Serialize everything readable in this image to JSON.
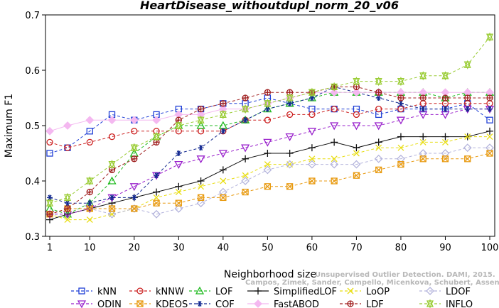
{
  "chart_data": {
    "type": "line",
    "title": "HeartDisease_withoutdupl_norm_20_v06",
    "xlabel": "Neighborhood size",
    "ylabel": "Maximum F1",
    "xlim": [
      1,
      100
    ],
    "ylim": [
      0.3,
      0.7
    ],
    "xticks": [
      1,
      10,
      20,
      30,
      40,
      50,
      60,
      70,
      80,
      90,
      100
    ],
    "yticks": [
      0.3,
      0.4,
      0.5,
      0.6,
      0.7
    ],
    "grid": false,
    "legend_position": "bottom",
    "watermark": [
      "Unsupervised Outlier Detection. DAMI, 2015.",
      "Campos, Zimek, Sander, Campello, Micenkova, Schubert, Assent, Houle"
    ],
    "series": [
      {
        "name": "kNN",
        "color": "#1f3fd6",
        "marker": "square",
        "line": "dash",
        "points": [
          [
            1,
            0.45
          ],
          [
            5,
            0.46
          ],
          [
            10,
            0.49
          ],
          [
            15,
            0.52
          ],
          [
            20,
            0.51
          ],
          [
            25,
            0.52
          ],
          [
            30,
            0.53
          ],
          [
            35,
            0.53
          ],
          [
            40,
            0.54
          ],
          [
            45,
            0.54
          ],
          [
            50,
            0.55
          ],
          [
            55,
            0.54
          ],
          [
            60,
            0.53
          ],
          [
            65,
            0.53
          ],
          [
            70,
            0.53
          ],
          [
            75,
            0.52
          ],
          [
            80,
            0.53
          ],
          [
            85,
            0.53
          ],
          [
            90,
            0.53
          ],
          [
            95,
            0.54
          ],
          [
            100,
            0.51
          ]
        ]
      },
      {
        "name": "kNNW",
        "color": "#cc2222",
        "marker": "circle",
        "line": "dash",
        "points": [
          [
            1,
            0.47
          ],
          [
            5,
            0.46
          ],
          [
            10,
            0.47
          ],
          [
            15,
            0.48
          ],
          [
            20,
            0.49
          ],
          [
            25,
            0.49
          ],
          [
            30,
            0.49
          ],
          [
            35,
            0.49
          ],
          [
            40,
            0.49
          ],
          [
            45,
            0.51
          ],
          [
            50,
            0.51
          ],
          [
            55,
            0.52
          ],
          [
            60,
            0.52
          ],
          [
            65,
            0.53
          ],
          [
            70,
            0.52
          ],
          [
            75,
            0.53
          ],
          [
            80,
            0.53
          ],
          [
            85,
            0.54
          ],
          [
            90,
            0.54
          ],
          [
            95,
            0.54
          ],
          [
            100,
            0.54
          ]
        ]
      },
      {
        "name": "LOF",
        "color": "#22bb22",
        "marker": "triangle-up",
        "line": "dash",
        "points": [
          [
            1,
            0.35
          ],
          [
            5,
            0.34
          ],
          [
            10,
            0.36
          ],
          [
            15,
            0.4
          ],
          [
            20,
            0.45
          ],
          [
            25,
            0.48
          ],
          [
            30,
            0.5
          ],
          [
            35,
            0.5
          ],
          [
            40,
            0.5
          ],
          [
            45,
            0.51
          ],
          [
            50,
            0.53
          ],
          [
            55,
            0.54
          ],
          [
            60,
            0.55
          ],
          [
            65,
            0.56
          ],
          [
            70,
            0.56
          ],
          [
            75,
            0.56
          ],
          [
            80,
            0.56
          ],
          [
            85,
            0.56
          ],
          [
            90,
            0.55
          ],
          [
            95,
            0.56
          ],
          [
            100,
            0.56
          ]
        ]
      },
      {
        "name": "SimplifiedLOF",
        "color": "#111111",
        "marker": "plus",
        "line": "solid",
        "points": [
          [
            1,
            0.33
          ],
          [
            5,
            0.34
          ],
          [
            10,
            0.35
          ],
          [
            15,
            0.36
          ],
          [
            20,
            0.37
          ],
          [
            25,
            0.38
          ],
          [
            30,
            0.39
          ],
          [
            35,
            0.4
          ],
          [
            40,
            0.42
          ],
          [
            45,
            0.44
          ],
          [
            50,
            0.45
          ],
          [
            55,
            0.45
          ],
          [
            60,
            0.46
          ],
          [
            65,
            0.47
          ],
          [
            70,
            0.46
          ],
          [
            75,
            0.47
          ],
          [
            80,
            0.48
          ],
          [
            85,
            0.48
          ],
          [
            90,
            0.48
          ],
          [
            95,
            0.48
          ],
          [
            100,
            0.49
          ]
        ]
      },
      {
        "name": "LoOP",
        "color": "#e8dd10",
        "marker": "x",
        "line": "dash",
        "points": [
          [
            1,
            0.34
          ],
          [
            5,
            0.33
          ],
          [
            10,
            0.33
          ],
          [
            15,
            0.34
          ],
          [
            20,
            0.35
          ],
          [
            25,
            0.37
          ],
          [
            30,
            0.38
          ],
          [
            35,
            0.39
          ],
          [
            40,
            0.4
          ],
          [
            45,
            0.41
          ],
          [
            50,
            0.43
          ],
          [
            55,
            0.43
          ],
          [
            60,
            0.44
          ],
          [
            65,
            0.44
          ],
          [
            70,
            0.45
          ],
          [
            75,
            0.46
          ],
          [
            80,
            0.46
          ],
          [
            85,
            0.47
          ],
          [
            90,
            0.47
          ],
          [
            95,
            0.48
          ],
          [
            100,
            0.48
          ]
        ]
      },
      {
        "name": "LDOF",
        "color": "#b4b4dc",
        "marker": "diamond",
        "line": "dash",
        "points": [
          [
            1,
            0.34
          ],
          [
            5,
            0.35
          ],
          [
            10,
            0.35
          ],
          [
            15,
            0.34
          ],
          [
            20,
            0.35
          ],
          [
            25,
            0.34
          ],
          [
            30,
            0.35
          ],
          [
            35,
            0.36
          ],
          [
            40,
            0.38
          ],
          [
            45,
            0.4
          ],
          [
            50,
            0.42
          ],
          [
            55,
            0.43
          ],
          [
            60,
            0.43
          ],
          [
            65,
            0.43
          ],
          [
            70,
            0.43
          ],
          [
            75,
            0.44
          ],
          [
            80,
            0.44
          ],
          [
            85,
            0.45
          ],
          [
            90,
            0.45
          ],
          [
            95,
            0.46
          ],
          [
            100,
            0.46
          ]
        ]
      },
      {
        "name": "ODIN",
        "color": "#9a22cc",
        "marker": "triangle-down",
        "line": "dash",
        "points": [
          [
            1,
            0.34
          ],
          [
            5,
            0.34
          ],
          [
            10,
            0.35
          ],
          [
            15,
            0.37
          ],
          [
            20,
            0.39
          ],
          [
            25,
            0.41
          ],
          [
            30,
            0.43
          ],
          [
            35,
            0.44
          ],
          [
            40,
            0.45
          ],
          [
            45,
            0.46
          ],
          [
            50,
            0.47
          ],
          [
            55,
            0.48
          ],
          [
            60,
            0.49
          ],
          [
            65,
            0.5
          ],
          [
            70,
            0.5
          ],
          [
            75,
            0.5
          ],
          [
            80,
            0.51
          ],
          [
            85,
            0.52
          ],
          [
            90,
            0.52
          ],
          [
            95,
            0.53
          ],
          [
            100,
            0.53
          ]
        ]
      },
      {
        "name": "KDEOS",
        "color": "#e89a10",
        "marker": "square-x",
        "line": "dash",
        "points": [
          [
            1,
            0.34
          ],
          [
            5,
            0.35
          ],
          [
            10,
            0.35
          ],
          [
            15,
            0.35
          ],
          [
            20,
            0.35
          ],
          [
            25,
            0.36
          ],
          [
            30,
            0.36
          ],
          [
            35,
            0.37
          ],
          [
            40,
            0.37
          ],
          [
            45,
            0.38
          ],
          [
            50,
            0.39
          ],
          [
            55,
            0.39
          ],
          [
            60,
            0.4
          ],
          [
            65,
            0.4
          ],
          [
            70,
            0.41
          ],
          [
            75,
            0.42
          ],
          [
            80,
            0.43
          ],
          [
            85,
            0.44
          ],
          [
            90,
            0.44
          ],
          [
            95,
            0.44
          ],
          [
            100,
            0.45
          ]
        ]
      },
      {
        "name": "COF",
        "color": "#122890",
        "marker": "asterisk",
        "line": "dash",
        "points": [
          [
            1,
            0.37
          ],
          [
            5,
            0.36
          ],
          [
            10,
            0.36
          ],
          [
            15,
            0.37
          ],
          [
            20,
            0.37
          ],
          [
            25,
            0.41
          ],
          [
            30,
            0.45
          ],
          [
            35,
            0.46
          ],
          [
            40,
            0.49
          ],
          [
            45,
            0.51
          ],
          [
            50,
            0.53
          ],
          [
            55,
            0.54
          ],
          [
            60,
            0.55
          ],
          [
            65,
            0.57
          ],
          [
            70,
            0.56
          ],
          [
            75,
            0.55
          ],
          [
            80,
            0.54
          ],
          [
            85,
            0.53
          ],
          [
            90,
            0.53
          ],
          [
            95,
            0.53
          ],
          [
            100,
            0.53
          ]
        ]
      },
      {
        "name": "FastABOD",
        "color": "#f4b8f0",
        "marker": "diamond-filled",
        "line": "solid",
        "points": [
          [
            1,
            0.49
          ],
          [
            5,
            0.5
          ],
          [
            10,
            0.51
          ],
          [
            15,
            0.51
          ],
          [
            20,
            0.51
          ],
          [
            25,
            0.51
          ],
          [
            30,
            0.52
          ],
          [
            35,
            0.52
          ],
          [
            40,
            0.53
          ],
          [
            45,
            0.53
          ],
          [
            50,
            0.54
          ],
          [
            55,
            0.55
          ],
          [
            60,
            0.56
          ],
          [
            65,
            0.56
          ],
          [
            70,
            0.56
          ],
          [
            75,
            0.56
          ],
          [
            80,
            0.56
          ],
          [
            85,
            0.56
          ],
          [
            90,
            0.56
          ],
          [
            95,
            0.56
          ],
          [
            100,
            0.56
          ]
        ]
      },
      {
        "name": "LDF",
        "color": "#a02020",
        "marker": "circle-plus",
        "line": "dash",
        "points": [
          [
            1,
            0.34
          ],
          [
            5,
            0.35
          ],
          [
            10,
            0.38
          ],
          [
            15,
            0.42
          ],
          [
            20,
            0.44
          ],
          [
            25,
            0.47
          ],
          [
            30,
            0.51
          ],
          [
            35,
            0.53
          ],
          [
            40,
            0.54
          ],
          [
            45,
            0.55
          ],
          [
            50,
            0.56
          ],
          [
            55,
            0.56
          ],
          [
            60,
            0.56
          ],
          [
            65,
            0.57
          ],
          [
            70,
            0.57
          ],
          [
            75,
            0.56
          ],
          [
            80,
            0.55
          ],
          [
            85,
            0.55
          ],
          [
            90,
            0.55
          ],
          [
            95,
            0.55
          ],
          [
            100,
            0.55
          ]
        ]
      },
      {
        "name": "INFLO",
        "color": "#99cc33",
        "marker": "star",
        "line": "dash",
        "points": [
          [
            1,
            0.36
          ],
          [
            5,
            0.37
          ],
          [
            10,
            0.4
          ],
          [
            15,
            0.43
          ],
          [
            20,
            0.46
          ],
          [
            25,
            0.48
          ],
          [
            30,
            0.5
          ],
          [
            35,
            0.51
          ],
          [
            40,
            0.52
          ],
          [
            45,
            0.53
          ],
          [
            50,
            0.54
          ],
          [
            55,
            0.55
          ],
          [
            60,
            0.56
          ],
          [
            65,
            0.57
          ],
          [
            70,
            0.58
          ],
          [
            75,
            0.58
          ],
          [
            80,
            0.58
          ],
          [
            85,
            0.59
          ],
          [
            90,
            0.59
          ],
          [
            95,
            0.61
          ],
          [
            100,
            0.66
          ]
        ]
      }
    ]
  }
}
